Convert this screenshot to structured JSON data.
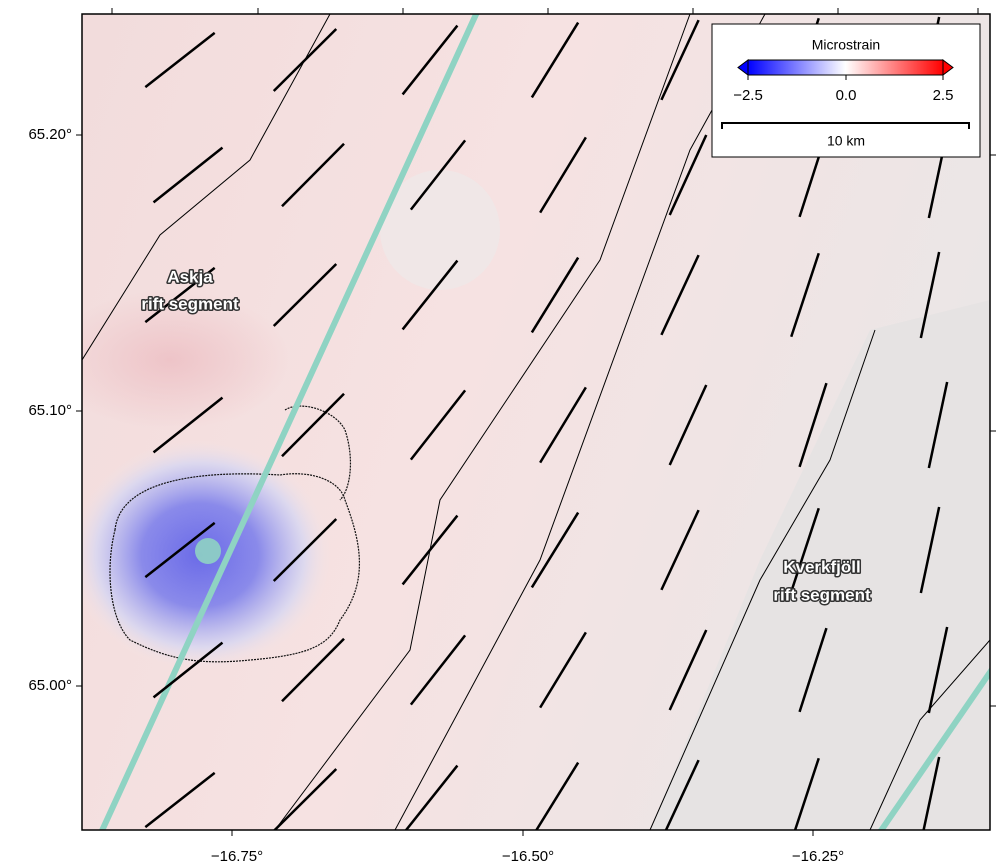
{
  "legend": {
    "title": "Microstrain",
    "ticks": [
      "−2.5",
      "0.0",
      "2.5"
    ],
    "scale": "10 km"
  },
  "axes": {
    "lat_labels": [
      "65.20°",
      "65.10°",
      "65.00°"
    ],
    "lon_labels": [
      "−16.75°",
      "−16.50°",
      "−16.25°"
    ]
  },
  "labels": [
    {
      "lines": [
        "Askja",
        "rift segment"
      ]
    },
    {
      "lines": [
        "Kverkfjöll",
        "rift segment"
      ]
    }
  ]
}
